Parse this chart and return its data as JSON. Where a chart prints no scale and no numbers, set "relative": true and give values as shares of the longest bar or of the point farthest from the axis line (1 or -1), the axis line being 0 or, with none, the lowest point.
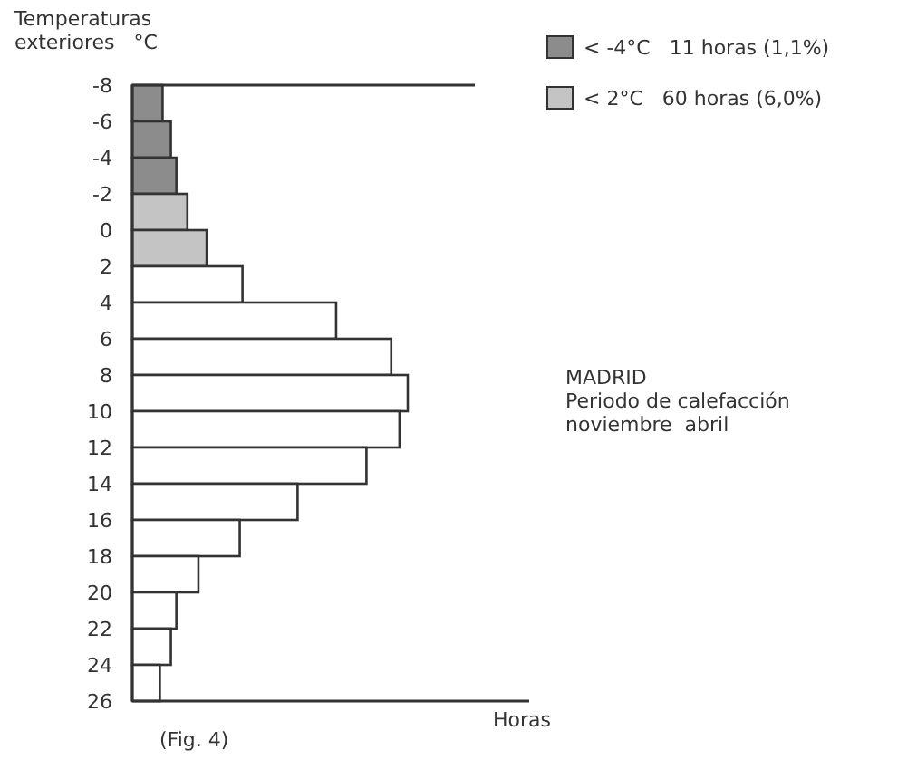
{
  "chart_data": {
    "type": "bar",
    "orientation": "horizontal",
    "relative": true,
    "x": [
      -7,
      -5,
      -3,
      -1,
      1,
      3,
      5,
      7,
      9,
      11,
      13,
      15,
      17,
      19,
      21,
      23,
      25
    ],
    "ylabel": "Temperaturas\nexteriores   °C",
    "xlabel": "Horas",
    "ylim": [
      26,
      -8
    ],
    "yticks": [
      -8,
      -6,
      -4,
      -2,
      0,
      2,
      4,
      6,
      8,
      10,
      12,
      14,
      16,
      18,
      20,
      22,
      24,
      26
    ],
    "values": [
      0.11,
      0.14,
      0.16,
      0.2,
      0.27,
      0.4,
      0.74,
      0.94,
      1,
      0.97,
      0.85,
      0.6,
      0.39,
      0.24,
      0.16,
      0.14,
      0.1
    ],
    "colors": [
      "#8c8c8c",
      "#8c8c8c",
      "#8c8c8c",
      "#c4c4c4",
      "#c4c4c4",
      "#ffffff",
      "#ffffff",
      "#ffffff",
      "#ffffff",
      "#ffffff",
      "#ffffff",
      "#ffffff",
      "#ffffff",
      "#ffffff",
      "#ffffff",
      "#ffffff",
      "#ffffff"
    ],
    "grid": false,
    "annotations": [
      "< -4°C   11 horas (1,1%)",
      "< 2°C   60 horas (6,0%)",
      "MADRID",
      "Periodo de calefacción",
      "noviembre  abril",
      "(Fig. 4)"
    ]
  }
}
